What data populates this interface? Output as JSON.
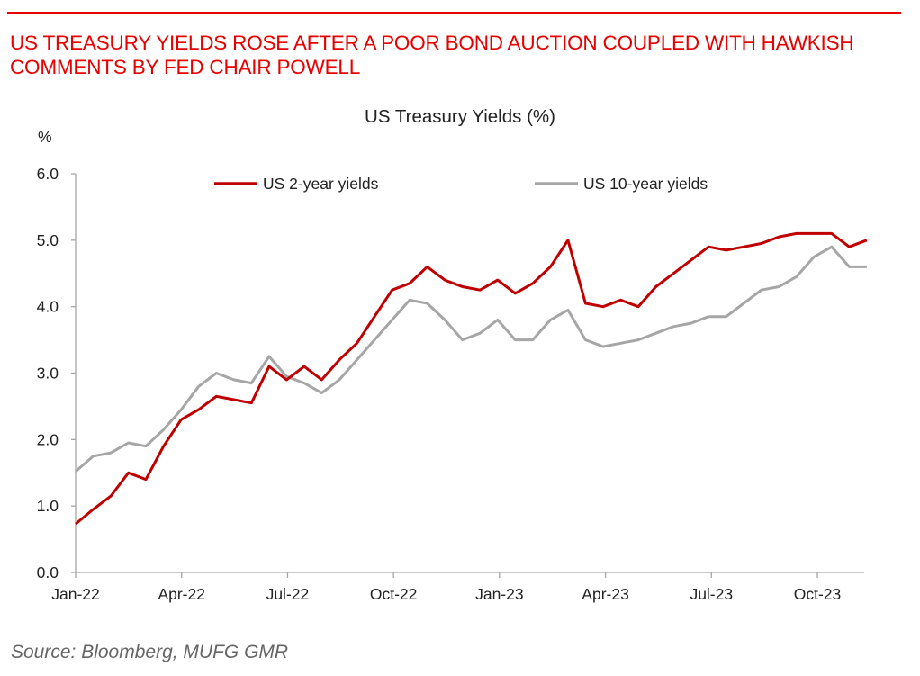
{
  "headline": "US TREASURY YIELDS ROSE AFTER A POOR BOND AUCTION COUPLED WITH HAWKISH COMMENTS BY FED CHAIR POWELL",
  "source": "Source: Bloomberg, MUFG GMR",
  "chart_data": {
    "type": "line",
    "title": "US Treasury Yields (%)",
    "ylabel": "%",
    "xlabel": "",
    "ylim": [
      0,
      6
    ],
    "yticks": [
      "0.0",
      "1.0",
      "2.0",
      "3.0",
      "4.0",
      "5.0",
      "6.0"
    ],
    "xticks": [
      "Jan-22",
      "Apr-22",
      "Jul-22",
      "Oct-22",
      "Jan-23",
      "Apr-23",
      "Jul-23",
      "Oct-23"
    ],
    "x_unit": "months since Jan-22 (semi-monthly samples)",
    "xlim": [
      0,
      22.4
    ],
    "legend_position": "top",
    "grid": false,
    "series": [
      {
        "name": "US 2-year yields",
        "color": "#c00000",
        "values": [
          0.73,
          0.95,
          1.15,
          1.5,
          1.4,
          1.9,
          2.3,
          2.45,
          2.65,
          2.6,
          2.55,
          3.1,
          2.9,
          3.1,
          2.9,
          3.2,
          3.45,
          3.85,
          4.25,
          4.35,
          4.6,
          4.4,
          4.3,
          4.25,
          4.4,
          4.2,
          4.35,
          4.6,
          5.0,
          4.05,
          4.0,
          4.1,
          4.0,
          4.3,
          4.5,
          4.7,
          4.9,
          4.85,
          4.9,
          4.95,
          5.05,
          5.1,
          5.1,
          5.1,
          4.9,
          5.0
        ]
      },
      {
        "name": "US 10-year yields",
        "color": "#a6a6a6",
        "values": [
          1.52,
          1.75,
          1.8,
          1.95,
          1.9,
          2.15,
          2.45,
          2.8,
          3.0,
          2.9,
          2.85,
          3.25,
          2.95,
          2.85,
          2.7,
          2.9,
          3.2,
          3.5,
          3.8,
          4.1,
          4.05,
          3.8,
          3.5,
          3.6,
          3.8,
          3.5,
          3.5,
          3.8,
          3.95,
          3.5,
          3.4,
          3.45,
          3.5,
          3.6,
          3.7,
          3.75,
          3.85,
          3.85,
          4.05,
          4.25,
          4.3,
          4.45,
          4.75,
          4.9,
          4.6,
          4.6
        ]
      }
    ]
  }
}
